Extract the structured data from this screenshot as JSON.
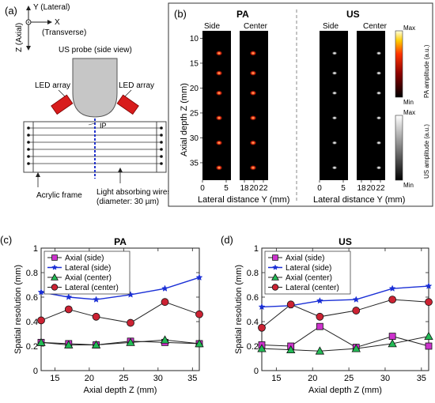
{
  "panel_a": {
    "label": "(a)",
    "axis_y": "Y (Lateral)",
    "axis_x": "X",
    "axis_x_sub": "(Transverse)",
    "axis_z": "Z (Axial)",
    "probe_label": "US probe (side view)",
    "led_left": "LED array",
    "led_right": "LED array",
    "ip_label": "IP",
    "frame_label": "Acrylic frame",
    "wires_label": "Light absorbing wires",
    "wires_sub": "(diameter: 30 µm)"
  },
  "panel_b": {
    "label": "(b)",
    "pa_title": "PA",
    "us_title": "US",
    "side_label": "Side",
    "center_label": "Center",
    "ylabel": "Axial depth Z (mm)",
    "xlabel": "Lateral distance Y (mm)",
    "yticks": [
      "10",
      "15",
      "20",
      "25",
      "30",
      "35"
    ],
    "xticks_side": [
      "0",
      "5"
    ],
    "xticks_center": [
      "18",
      "20",
      "22"
    ],
    "cbar_pa_max": "Max",
    "cbar_pa_min": "Min",
    "cbar_pa_label": "PA amplitude (a.u.)",
    "cbar_us_max": "Max",
    "cbar_us_min": "Min",
    "cbar_us_label": "US amplitude (a.u.)"
  },
  "colors": {
    "axial_side": "#cc33cc",
    "lateral_side": "#1a2fd6",
    "axial_center": "#22bb55",
    "lateral_center": "#cc2233"
  },
  "chart_data": [
    {
      "type": "line",
      "panel": "(c)",
      "title": "PA",
      "xlabel": "Axial depth Z (mm)",
      "ylabel": "Spatial resolution (mm)",
      "xlim": [
        13,
        36
      ],
      "ylim": [
        0,
        1
      ],
      "xticks": [
        15,
        20,
        25,
        30,
        35
      ],
      "yticks": [
        0,
        0.2,
        0.4,
        0.6,
        0.8,
        1
      ],
      "legend": "top-left",
      "x": [
        13,
        17,
        21,
        26,
        31,
        36
      ],
      "series": [
        {
          "name": "Axial (side)",
          "values": [
            0.23,
            0.22,
            0.21,
            0.24,
            0.23,
            0.22
          ]
        },
        {
          "name": "Lateral (side)",
          "values": [
            0.64,
            0.6,
            0.58,
            0.62,
            0.67,
            0.76
          ]
        },
        {
          "name": "Axial (center)",
          "values": [
            0.23,
            0.21,
            0.21,
            0.23,
            0.25,
            0.22
          ]
        },
        {
          "name": "Lateral (center)",
          "values": [
            0.41,
            0.5,
            0.44,
            0.39,
            0.56,
            0.46
          ]
        }
      ]
    },
    {
      "type": "line",
      "panel": "(d)",
      "title": "US",
      "xlabel": "Axial depth Z (mm)",
      "ylabel": "Spatial resolution (mm)",
      "xlim": [
        13,
        36
      ],
      "ylim": [
        0,
        1
      ],
      "xticks": [
        15,
        20,
        25,
        30,
        35
      ],
      "yticks": [
        0,
        0.2,
        0.4,
        0.6,
        0.8,
        1
      ],
      "legend": "top-left",
      "x": [
        13,
        17,
        21,
        26,
        31,
        36
      ],
      "series": [
        {
          "name": "Axial (side)",
          "values": [
            0.21,
            0.2,
            0.36,
            0.19,
            0.28,
            0.2
          ]
        },
        {
          "name": "Lateral (side)",
          "values": [
            0.52,
            0.53,
            0.57,
            0.58,
            0.67,
            0.69
          ]
        },
        {
          "name": "Axial (center)",
          "values": [
            0.18,
            0.17,
            0.16,
            0.18,
            0.22,
            0.28
          ]
        },
        {
          "name": "Lateral (center)",
          "values": [
            0.35,
            0.54,
            0.44,
            0.49,
            0.58,
            0.56
          ]
        }
      ]
    }
  ]
}
